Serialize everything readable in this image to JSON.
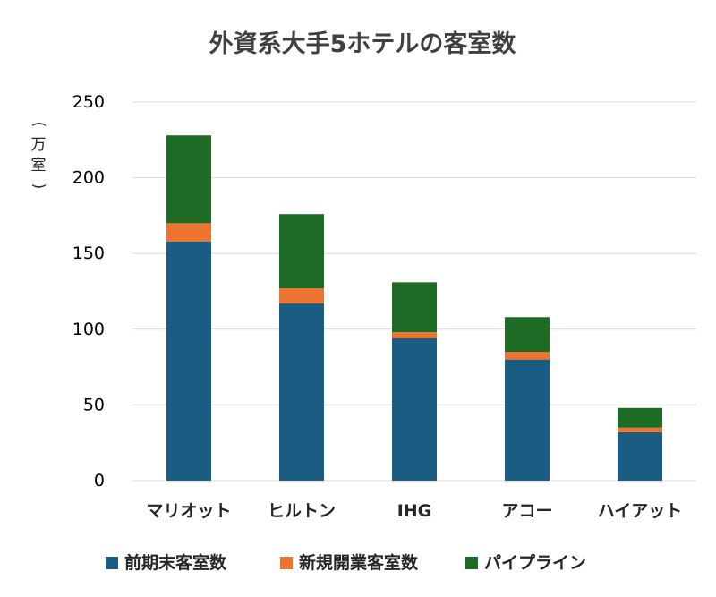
{
  "chart_data": {
    "type": "bar",
    "stacked": true,
    "title": "外資系大手5ホテルの客室数",
    "ylabel": "(万室)",
    "xlabel": "",
    "ylim": [
      0,
      250
    ],
    "yticks": [
      0,
      50,
      100,
      150,
      200,
      250
    ],
    "grid": true,
    "legend_position": "bottom",
    "categories": [
      "マリオット",
      "ヒルトン",
      "IHG",
      "アコー",
      "ハイアット"
    ],
    "series": [
      {
        "name": "前期末客室数",
        "color": "#1a5c82",
        "values": [
          158,
          117,
          94,
          80,
          32
        ]
      },
      {
        "name": "新規開業客室数",
        "color": "#ed7330",
        "values": [
          12,
          10,
          4,
          5,
          3
        ]
      },
      {
        "name": "パイプライン",
        "color": "#1d6b24",
        "values": [
          58,
          49,
          33,
          23,
          13
        ]
      }
    ]
  }
}
